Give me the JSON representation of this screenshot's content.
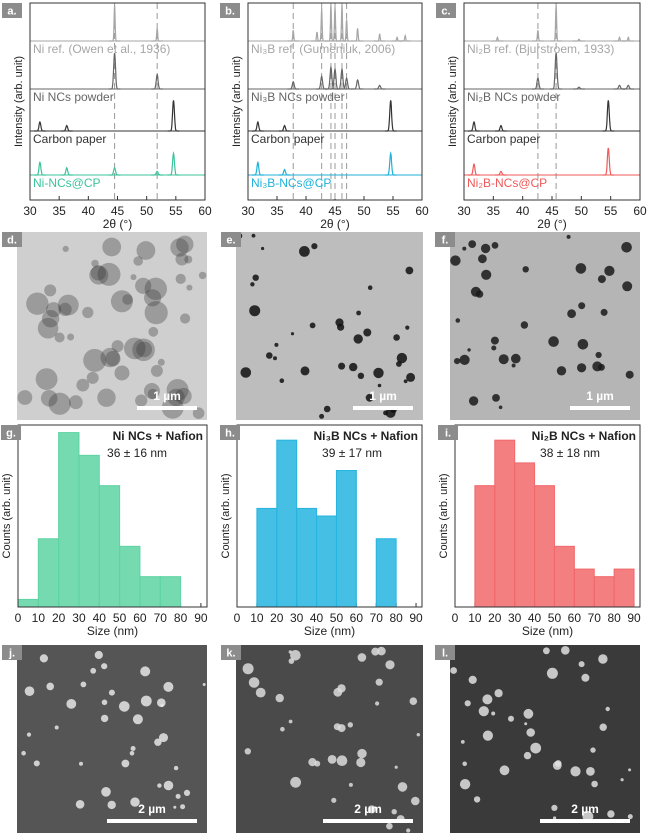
{
  "chart_data": [
    {
      "type": "line",
      "panel_label": "a.",
      "x_label": "2θ (°)",
      "y_label": "Intensity (arb. unit)",
      "xlim": [
        30,
        60
      ],
      "xticks": [
        30,
        35,
        40,
        45,
        50,
        55,
        60
      ],
      "reference_lines": [
        44.5,
        51.8
      ],
      "series": [
        {
          "name": "Ni ref. (Owen et al., 1936)",
          "color": "#a6a6a6",
          "x": [
            44.5,
            51.8
          ],
          "values": [
            1.0,
            0.35
          ]
        },
        {
          "name": "Ni NCs powder",
          "color": "#666666",
          "x": [
            44.5,
            51.8
          ],
          "values": [
            1.0,
            0.4
          ]
        },
        {
          "name": "Carbon paper",
          "color": "#333333",
          "x": [
            31.7,
            36.3,
            54.6
          ],
          "values": [
            0.25,
            0.15,
            0.85
          ]
        },
        {
          "name": "Ni-NCs@CP",
          "color": "#3cc39a",
          "x": [
            31.7,
            36.3,
            44.5,
            51.8,
            54.6
          ],
          "values": [
            0.35,
            0.2,
            0.2,
            0.1,
            0.6
          ]
        }
      ]
    },
    {
      "type": "line",
      "panel_label": "b.",
      "x_label": "2θ (°)",
      "y_label": "Intensity (arb. unit)",
      "xlim": [
        30,
        60
      ],
      "xticks": [
        30,
        35,
        40,
        45,
        50,
        55,
        60
      ],
      "reference_lines": [
        37.8,
        42.7,
        44.3,
        45.0,
        46.2,
        47.0
      ],
      "series": [
        {
          "name": "Ni₃B ref. (Gumeniuk, 2006)",
          "color": "#a6a6a6",
          "x": [
            37.8,
            41.9,
            42.7,
            44.3,
            45.0,
            46.2,
            47.0,
            48.9,
            52.7,
            55.7,
            57.1
          ],
          "values": [
            0.3,
            0.25,
            0.9,
            1.0,
            0.95,
            1.0,
            0.6,
            0.35,
            0.2,
            0.1,
            0.15
          ]
        },
        {
          "name": "Ni₃B NCs powder",
          "color": "#666666",
          "x": [
            37.8,
            42.7,
            44.3,
            45.0,
            46.2,
            47.0,
            48.9,
            52.7
          ],
          "values": [
            0.2,
            0.35,
            0.6,
            0.55,
            0.55,
            0.3,
            0.25,
            0.1
          ]
        },
        {
          "name": "Carbon paper",
          "color": "#333333",
          "x": [
            31.7,
            36.3,
            54.6
          ],
          "values": [
            0.25,
            0.15,
            0.85
          ]
        },
        {
          "name": "Ni₃B-NCs@CP",
          "color": "#1fb1d9",
          "x": [
            31.7,
            36.3,
            54.6
          ],
          "values": [
            0.35,
            0.15,
            0.6
          ]
        }
      ]
    },
    {
      "type": "line",
      "panel_label": "c.",
      "x_label": "2θ (°)",
      "y_label": "Intensity (arb. unit)",
      "xlim": [
        30,
        60
      ],
      "xticks": [
        30,
        35,
        40,
        45,
        50,
        55,
        60
      ],
      "reference_lines": [
        42.6,
        45.7
      ],
      "series": [
        {
          "name": "Ni₂B ref. (Bjurstroem, 1933)",
          "color": "#a6a6a6",
          "x": [
            35.7,
            42.6,
            45.7,
            49.6,
            56.5,
            58.0
          ],
          "values": [
            0.1,
            0.3,
            1.0,
            0.05,
            0.1,
            0.1
          ]
        },
        {
          "name": "Ni₂B NCs powder",
          "color": "#666666",
          "x": [
            42.6,
            45.7,
            49.6,
            56.5,
            58.0
          ],
          "values": [
            0.3,
            1.0,
            0.05,
            0.1,
            0.1
          ]
        },
        {
          "name": "Carbon paper",
          "color": "#333333",
          "x": [
            31.7,
            36.3,
            54.6
          ],
          "values": [
            0.25,
            0.15,
            0.85
          ]
        },
        {
          "name": "Ni₂B-NCs@CP",
          "color": "#ef5a5a",
          "x": [
            31.7,
            36.3,
            54.6
          ],
          "values": [
            0.3,
            0.1,
            0.75
          ]
        }
      ]
    },
    {
      "type": "histogram",
      "panel_label": "g.",
      "title": "Ni NCs + Nafion",
      "subtitle": "36 ± 16 nm",
      "x_label": "Size (nm)",
      "y_label": "Counts (arb. unit)",
      "color": "#5ed3a3",
      "bins": [
        0,
        10,
        20,
        30,
        40,
        50,
        60,
        70,
        80
      ],
      "values": [
        1,
        9,
        23,
        20,
        16,
        8,
        4,
        4
      ],
      "xlim": [
        0,
        93
      ],
      "xticks": [
        0,
        10,
        20,
        30,
        40,
        50,
        60,
        70,
        80,
        90
      ],
      "ylim": [
        0,
        24
      ]
    },
    {
      "type": "histogram",
      "panel_label": "h.",
      "title": "Ni₃B NCs + Nafion",
      "subtitle": "39 ± 17 nm",
      "x_label": "Size (nm)",
      "y_label": "Counts (arb. unit)",
      "color": "#26b4e0",
      "bins": [
        10,
        20,
        30,
        40,
        50,
        60,
        70,
        80
      ],
      "values": [
        13,
        22,
        13,
        12,
        18,
        0,
        9
      ],
      "xlim": [
        0,
        93
      ],
      "xticks": [
        0,
        10,
        20,
        30,
        40,
        50,
        60,
        70,
        80,
        90
      ],
      "ylim": [
        0,
        24
      ]
    },
    {
      "type": "histogram",
      "panel_label": "i.",
      "title": "Ni₂B NCs + Nafion",
      "subtitle": "38 ± 18 nm",
      "x_label": "Size (nm)",
      "y_label": "Counts (arb. unit)",
      "color": "#f1686b",
      "bins": [
        10,
        20,
        30,
        40,
        50,
        60,
        70,
        80,
        90
      ],
      "values": [
        16,
        22,
        19,
        16,
        8,
        5,
        4,
        5
      ],
      "xlim": [
        0,
        93
      ],
      "xticks": [
        0,
        10,
        20,
        30,
        40,
        50,
        60,
        70,
        80,
        90
      ],
      "ylim": [
        0,
        24
      ]
    }
  ],
  "images": [
    {
      "panel_label": "d.",
      "scale_bar": "1 µm"
    },
    {
      "panel_label": "e.",
      "scale_bar": "1 µm"
    },
    {
      "panel_label": "f.",
      "scale_bar": "1 µm"
    },
    {
      "panel_label": "j.",
      "scale_bar": "2 µm"
    },
    {
      "panel_label": "k.",
      "scale_bar": "2 µm"
    },
    {
      "panel_label": "l.",
      "scale_bar": "2 µm"
    }
  ]
}
